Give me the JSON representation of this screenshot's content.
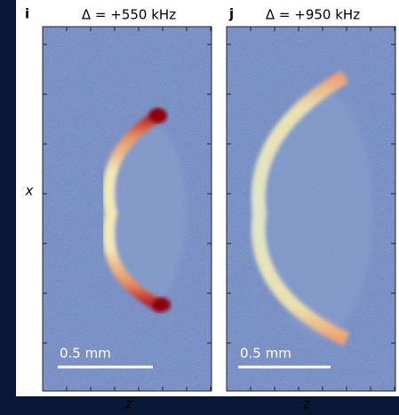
{
  "y_axis_label": "x",
  "panels": [
    {
      "label": "i",
      "title": "Δ = +550 kHz",
      "scale_bar": "0.5 mm",
      "x_axis_label": "z"
    },
    {
      "label": "j",
      "title": "Δ = +950 kHz",
      "scale_bar": "0.5 mm",
      "x_axis_label": "z"
    }
  ]
}
